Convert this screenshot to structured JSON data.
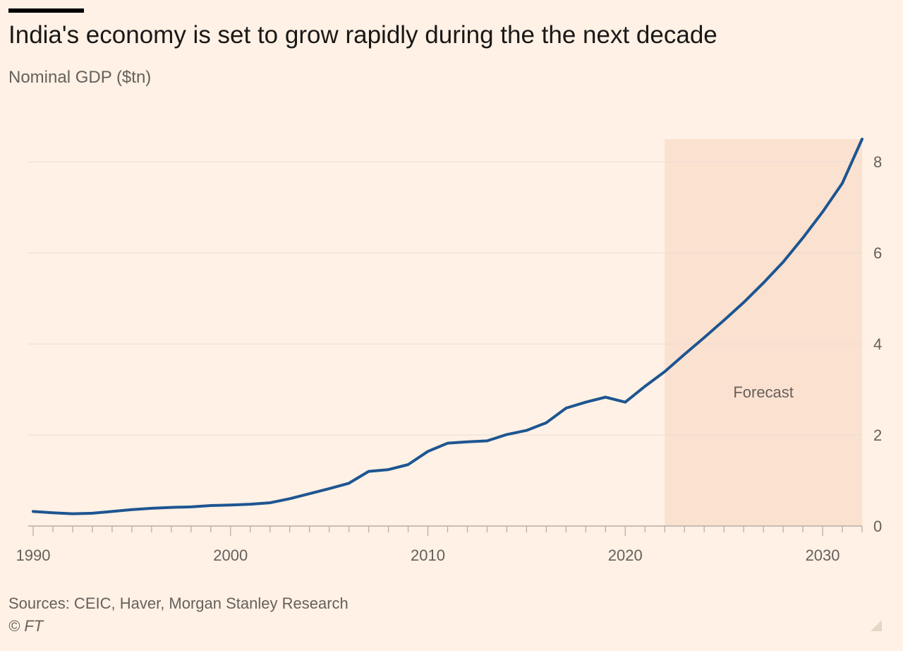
{
  "header": {
    "title": "India's economy is set to grow rapidly during the the next decade",
    "subtitle": "Nominal GDP ($tn)"
  },
  "footer": {
    "source": "Sources: CEIC, Haver, Morgan Stanley Research",
    "copyright": "© FT"
  },
  "colors": {
    "background": "#fff1e5",
    "line": "#1d5591",
    "forecast_band": "#fbe1d0",
    "grid": "#e9ddd2",
    "axis_text": "#66605c"
  },
  "chart_data": {
    "type": "line",
    "title": "India's economy is set to grow rapidly during the the next decade",
    "subtitle": "Nominal GDP ($tn)",
    "xlabel": "",
    "ylabel": "",
    "xlim": [
      1990,
      2032
    ],
    "ylim": [
      0,
      8.5
    ],
    "x_ticks": [
      1990,
      2000,
      2010,
      2020,
      2030
    ],
    "y_ticks": [
      0,
      2,
      4,
      6,
      8
    ],
    "y_axis_side": "right",
    "grid": true,
    "annotations": [
      {
        "type": "shaded-region",
        "x_start": 2022,
        "x_end": 2032,
        "label": "Forecast"
      }
    ],
    "series": [
      {
        "x": [
          1990,
          1991,
          1992,
          1993,
          1994,
          1995,
          1996,
          1997,
          1998,
          1999,
          2000,
          2001,
          2002,
          2003,
          2004,
          2005,
          2006,
          2007,
          2008,
          2009,
          2010,
          2011,
          2012,
          2013,
          2014,
          2015,
          2016,
          2017,
          2018,
          2019,
          2020,
          2021,
          2022,
          2023,
          2024,
          2025,
          2026,
          2027,
          2028,
          2029,
          2030,
          2031,
          2032
        ],
        "values": [
          0.32,
          0.29,
          0.27,
          0.28,
          0.32,
          0.36,
          0.39,
          0.41,
          0.42,
          0.45,
          0.46,
          0.48,
          0.51,
          0.6,
          0.71,
          0.82,
          0.94,
          1.2,
          1.24,
          1.35,
          1.64,
          1.82,
          1.85,
          1.87,
          2.01,
          2.1,
          2.27,
          2.59,
          2.72,
          2.83,
          2.72,
          3.07,
          3.39,
          3.77,
          4.14,
          4.52,
          4.91,
          5.34,
          5.8,
          6.33,
          6.9,
          7.53,
          8.5
        ]
      }
    ]
  }
}
